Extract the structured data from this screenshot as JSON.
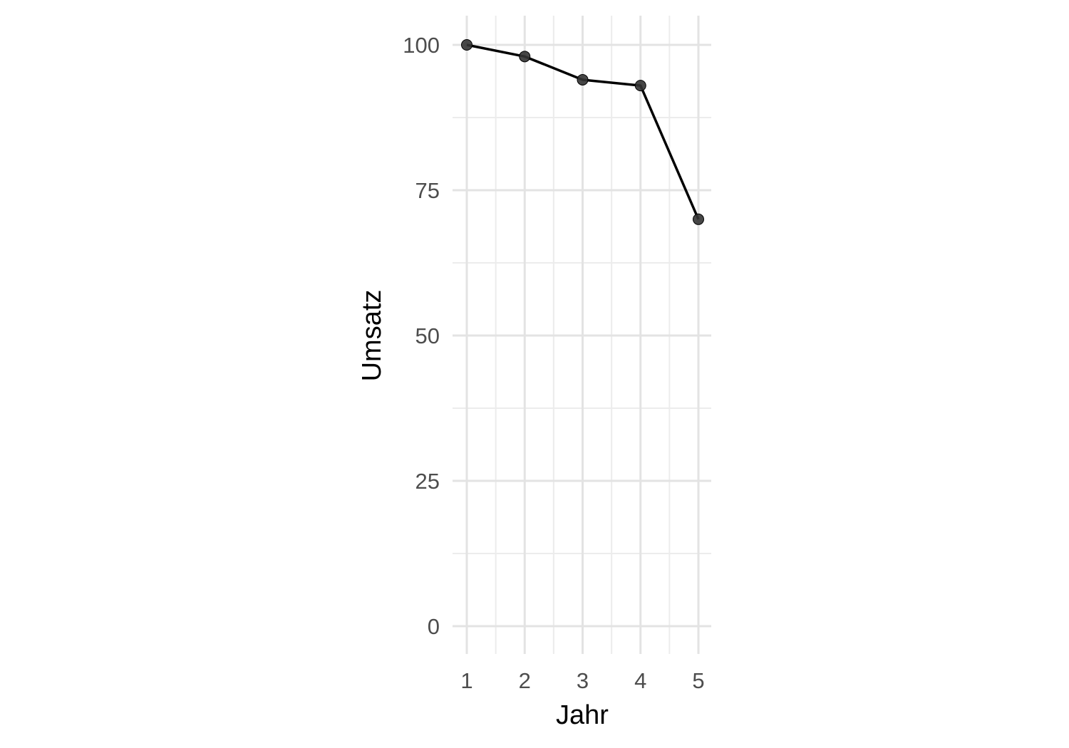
{
  "chart_data": {
    "type": "line",
    "title": "",
    "xlabel": "Jahr",
    "ylabel": "Umsatz",
    "x": [
      1,
      2,
      3,
      4,
      5
    ],
    "series": [
      {
        "values": [
          100,
          98,
          94,
          93,
          70
        ]
      }
    ],
    "xlim": [
      1,
      5
    ],
    "ylim": [
      0,
      100
    ],
    "x_ticks": [
      1,
      2,
      3,
      4,
      5
    ],
    "y_ticks": [
      0,
      25,
      50,
      75,
      100
    ],
    "grid": true,
    "legend": "none",
    "line_color": "#000000",
    "point_color": "#333333",
    "grid_color": "#e3e3e3"
  }
}
